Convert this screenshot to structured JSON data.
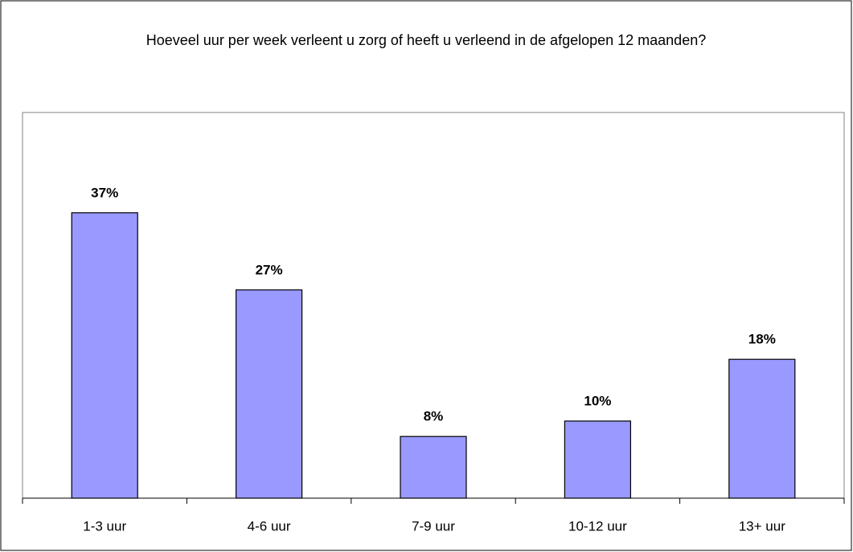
{
  "chart_data": {
    "type": "bar",
    "title": "Hoeveel uur per week verleent u zorg of heeft u verleend in de afgelopen 12 maanden?",
    "categories": [
      "1-3 uur",
      "4-6 uur",
      "7-9 uur",
      "10-12 uur",
      "13+ uur"
    ],
    "values": [
      37,
      27,
      8,
      10,
      18
    ],
    "value_labels": [
      "37%",
      "27%",
      "8%",
      "10%",
      "18%"
    ],
    "color": "#9999ff",
    "ylim": [
      0,
      50
    ]
  }
}
